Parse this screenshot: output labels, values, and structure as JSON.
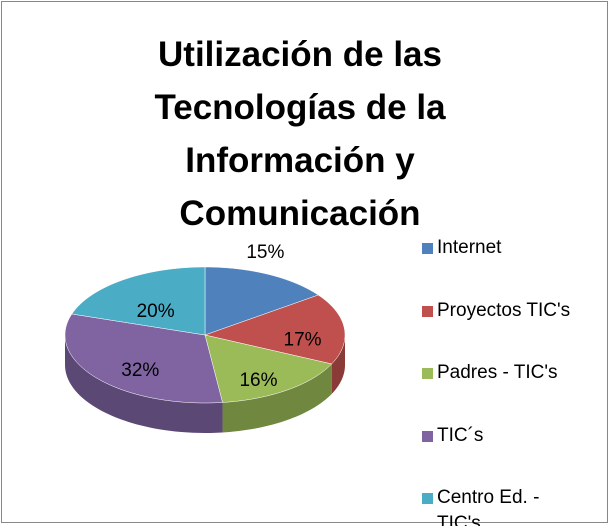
{
  "chart_data": {
    "type": "pie",
    "title": "Utilización de las Tecnologías de la Información y Comunicación",
    "categories": [
      "Internet",
      "Proyectos TIC's",
      "Padres - TIC's",
      "TIC´s",
      "Centro Ed. - TIC's"
    ],
    "values": [
      15,
      17,
      16,
      32,
      20
    ],
    "value_labels": [
      "15%",
      "17%",
      "16%",
      "32%",
      "20%"
    ],
    "colors": [
      "#4f81bd",
      "#c0504d",
      "#9bbb59",
      "#8064a2",
      "#4bacc6"
    ],
    "legend": "right"
  }
}
